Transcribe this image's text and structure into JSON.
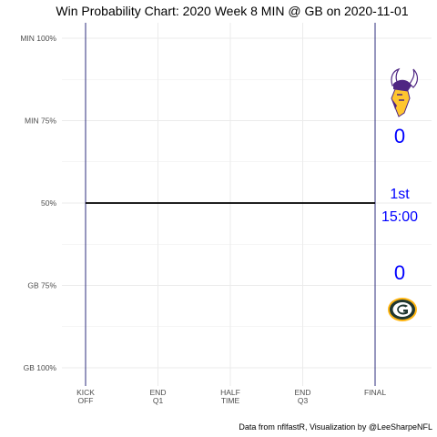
{
  "chart_data": {
    "type": "line",
    "title": "Win Probability Chart: 2020 Week 8 MIN @ GB on 2020-11-01",
    "caption": "Data from nflfastR, Visualization by @LeeSharpeNFL",
    "y_tick_labels": [
      "MIN 100%",
      "MIN 75%",
      "50%",
      "GB 75%",
      "GB 100%"
    ],
    "y_tick_values": [
      1.0,
      0.75,
      0.5,
      0.25,
      0.0
    ],
    "ylim": [
      0,
      1
    ],
    "x_tick_labels": [
      {
        "line1": "KICK",
        "line2": "OFF"
      },
      {
        "line1": "END",
        "line2": "Q1"
      },
      {
        "line1": "HALF",
        "line2": "TIME"
      },
      {
        "line1": "END",
        "line2": "Q3"
      },
      {
        "line1": "FINAL",
        "line2": ""
      }
    ],
    "x_tick_values": [
      0,
      900,
      1800,
      2700,
      3600
    ],
    "xlim": [
      0,
      3600
    ],
    "series": [
      {
        "x": [
          0,
          3600
        ],
        "y": [
          0.5,
          0.5
        ]
      }
    ],
    "vlines": [
      0,
      3600
    ],
    "grid": true,
    "annotations": {
      "away_team": "MIN",
      "home_team": "GB",
      "away_score": "0",
      "home_score": "0",
      "quarter": "1st",
      "clock": "15:00"
    },
    "colors": {
      "line": "#000000",
      "vline": "#191970",
      "annotation": "#0000ff",
      "grid": "#ebebeb",
      "min_purple": "#4f2683",
      "min_gold": "#ffc62f",
      "gb_green": "#203731",
      "gb_gold": "#ffb612"
    }
  }
}
